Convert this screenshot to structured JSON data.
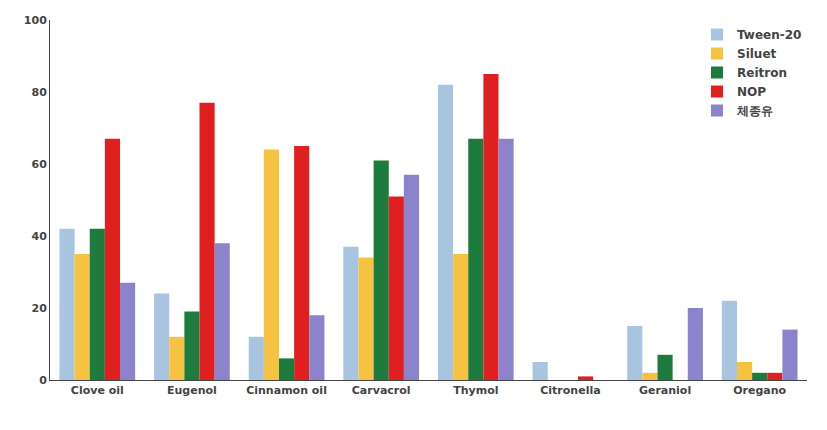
{
  "chart_data": {
    "type": "bar",
    "categories": [
      "Clove oil",
      "Eugenol",
      "Cinnamon oil",
      "Carvacrol",
      "Thymol",
      "Citronella",
      "Geraniol",
      "Oregano"
    ],
    "series": [
      {
        "name": "Tween-20",
        "color": "#a8c4e0",
        "values": [
          42,
          24,
          12,
          37,
          82,
          5,
          15,
          22
        ]
      },
      {
        "name": "Siluet",
        "color": "#f5c242",
        "values": [
          35,
          12,
          64,
          34,
          35,
          0,
          2,
          5
        ]
      },
      {
        "name": "Reitron",
        "color": "#1e7b3e",
        "values": [
          42,
          19,
          6,
          61,
          67,
          0,
          7,
          2
        ]
      },
      {
        "name": "NOP",
        "color": "#e02020",
        "values": [
          67,
          77,
          65,
          51,
          85,
          1,
          0,
          2
        ]
      },
      {
        "name": "체종유",
        "color": "#8b84cc",
        "values": [
          27,
          38,
          18,
          57,
          67,
          0,
          20,
          14
        ]
      }
    ],
    "ylim": [
      0,
      100
    ],
    "yticks": [
      0,
      20,
      40,
      60,
      80,
      100
    ],
    "grid": false,
    "legend": "upper right"
  }
}
